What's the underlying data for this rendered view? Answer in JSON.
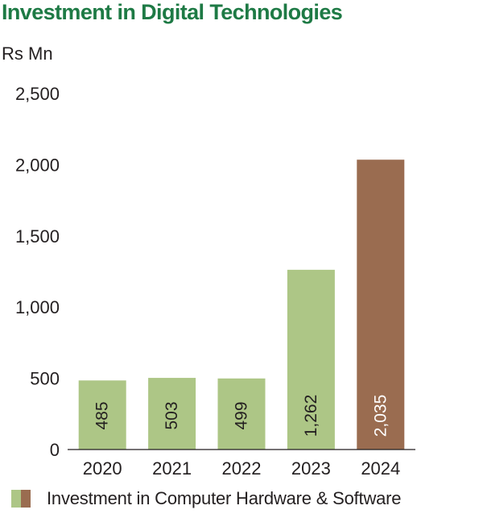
{
  "chart_data": {
    "type": "bar",
    "title": "Investment in Digital Technologies",
    "ylabel": "Rs Mn",
    "categories": [
      "2020",
      "2021",
      "2022",
      "2023",
      "2024"
    ],
    "values": [
      485,
      503,
      499,
      1262,
      2035
    ],
    "value_labels": [
      "485",
      "503",
      "499",
      "1,262",
      "2,035"
    ],
    "ylim": [
      0,
      2500
    ],
    "yticks": [
      0,
      500,
      1000,
      1500,
      2000,
      2500
    ],
    "ytick_labels": [
      "0",
      "500",
      "1,000",
      "1,500",
      "2,000",
      "2,500"
    ],
    "bar_colors": [
      "#adc686",
      "#adc686",
      "#adc686",
      "#adc686",
      "#9a6c50"
    ],
    "label_colors": [
      "#231f20",
      "#231f20",
      "#231f20",
      "#231f20",
      "#ffffff"
    ],
    "grid": false,
    "legend": {
      "position": "bottom",
      "label": "Investment in Computer Hardware & Software",
      "swatch_colors": [
        "#adc686",
        "#9a6c50"
      ]
    }
  }
}
